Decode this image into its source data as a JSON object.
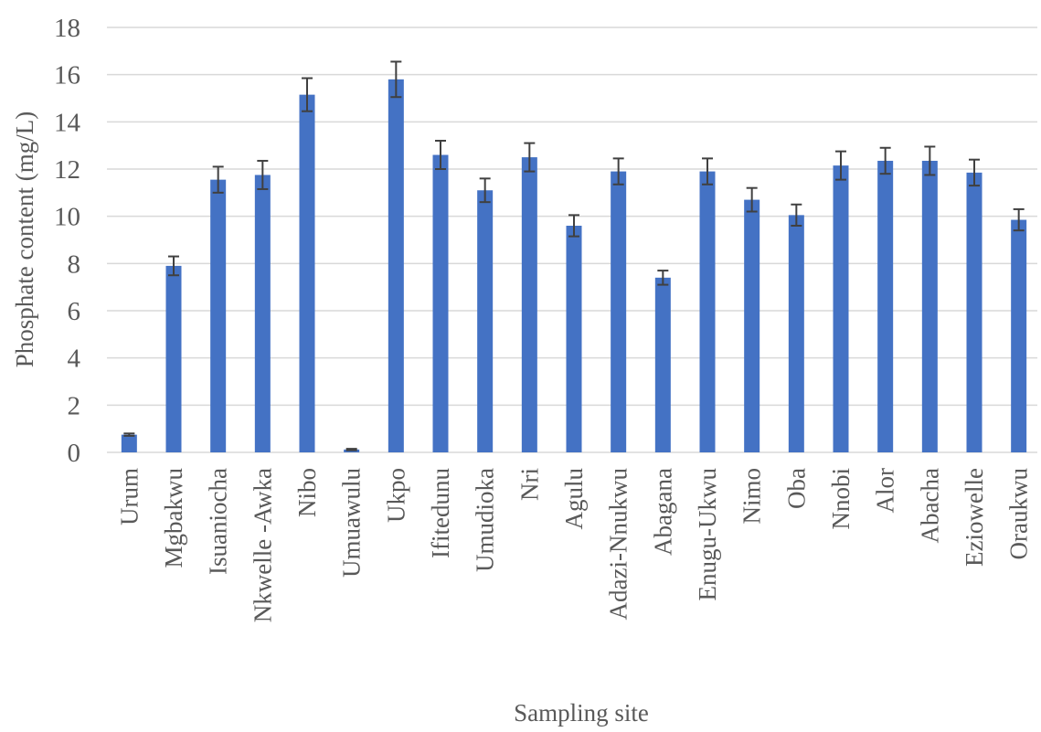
{
  "chart_data": {
    "type": "bar",
    "title": "",
    "xlabel": "Sampling site",
    "ylabel": "Phosphate content (mg/L)",
    "ylim": [
      0,
      18
    ],
    "yticks": [
      0,
      2,
      4,
      6,
      8,
      10,
      12,
      14,
      16,
      18
    ],
    "grid": true,
    "legend": "none",
    "bar_color": "#4472c4",
    "categories": [
      "Urum",
      "Mgbakwu",
      "Isuaniocha",
      "Nkwelle -Awka",
      "Nibo",
      "Umuawulu",
      "Ukpo",
      "Ifitedunu",
      "Umudioka",
      "Nri",
      "Agulu",
      "Adazi-Nnukwu",
      "Abagana",
      "Enugu-Ukwu",
      "Nimo",
      "Oba",
      "Nnobi",
      "Alor",
      "Abacha",
      "Eziowelle",
      "Oraukwu"
    ],
    "values": [
      0.75,
      7.9,
      11.55,
      11.75,
      15.15,
      0.12,
      15.8,
      12.6,
      11.1,
      12.5,
      9.6,
      11.9,
      7.4,
      11.9,
      10.7,
      10.05,
      12.15,
      12.35,
      12.35,
      11.85,
      9.85
    ],
    "errors": [
      0.05,
      0.4,
      0.55,
      0.6,
      0.7,
      0.03,
      0.75,
      0.6,
      0.5,
      0.6,
      0.45,
      0.55,
      0.3,
      0.55,
      0.5,
      0.45,
      0.6,
      0.55,
      0.6,
      0.55,
      0.45
    ]
  }
}
